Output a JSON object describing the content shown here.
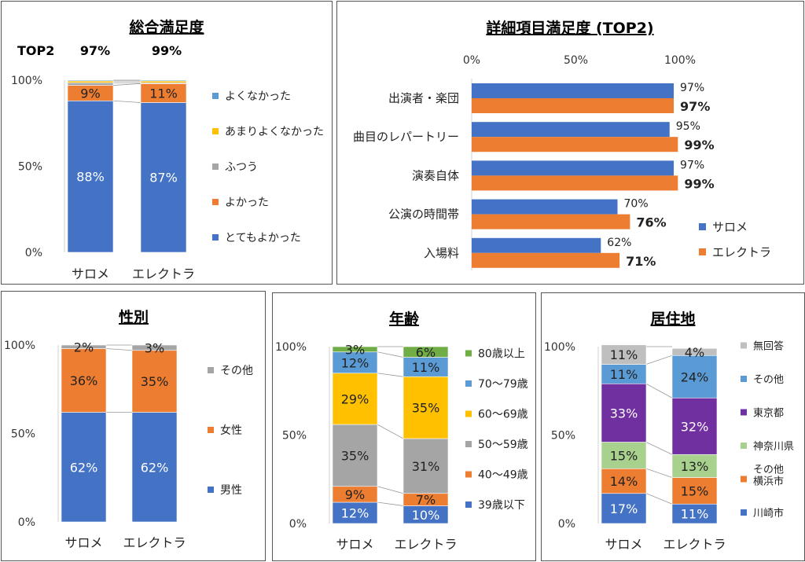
{
  "colors": {
    "blue": "#4472C4",
    "orange": "#ED7D31",
    "gray": "#A5A5A5",
    "yellow": "#FFC000",
    "lightblue": "#5B9BD5",
    "green": "#70AD47",
    "purple": "#7030A0",
    "lightgreen": "#A9D18E",
    "lightgray": "#BFBFBF"
  },
  "chart_data": [
    {
      "id": "overall",
      "type": "bar",
      "stacked": true,
      "title": "総合満足度",
      "top2_label": "TOP2",
      "top2_values": [
        "97%",
        "99%"
      ],
      "categories": [
        "サロメ",
        "エレクトラ"
      ],
      "y_ticks": [
        "0%",
        "50%",
        "100%"
      ],
      "ylim": [
        0,
        100
      ],
      "legend_position": "right",
      "series": [
        {
          "name": "とてもよかった",
          "color": "#4472C4",
          "values": [
            88,
            87
          ],
          "labels": [
            "88%",
            "87%"
          ],
          "label_color": "#ffffff"
        },
        {
          "name": "よかった",
          "color": "#ED7D31",
          "values": [
            9,
            11
          ],
          "labels": [
            "9%",
            "11%"
          ],
          "label_color": "#222222"
        },
        {
          "name": "ふつう",
          "color": "#A5A5A5",
          "values": [
            1.5,
            0.5
          ],
          "labels": [
            "",
            ""
          ]
        },
        {
          "name": "あまりよくなかった",
          "color": "#FFC000",
          "values": [
            1.0,
            1.0
          ],
          "labels": [
            "",
            ""
          ]
        },
        {
          "name": "よくなかった",
          "color": "#5B9BD5",
          "values": [
            0.5,
            0.5
          ],
          "labels": [
            "",
            ""
          ]
        }
      ]
    },
    {
      "id": "detail",
      "type": "bar",
      "orientation": "horizontal",
      "title": "詳細項目満足度 (TOP2)",
      "x_ticks": [
        "0%",
        "50%",
        "100%"
      ],
      "xlim": [
        0,
        100
      ],
      "categories": [
        "出演者・楽団",
        "曲目のレパートリー",
        "演奏自体",
        "公演の時間帯",
        "入場料"
      ],
      "legend_position": "bottom-right",
      "series": [
        {
          "name": "サロメ",
          "color": "#4472C4",
          "values": [
            97,
            95,
            97,
            70,
            62
          ],
          "labels": [
            "97%",
            "95%",
            "97%",
            "70%",
            "62%"
          ]
        },
        {
          "name": "エレクトラ",
          "color": "#ED7D31",
          "values": [
            97,
            99,
            99,
            76,
            71
          ],
          "labels": [
            "97%",
            "99%",
            "99%",
            "76%",
            "71%"
          ]
        }
      ]
    },
    {
      "id": "gender",
      "type": "bar",
      "stacked": true,
      "title": "性別",
      "categories": [
        "サロメ",
        "エレクトラ"
      ],
      "y_ticks": [
        "0%",
        "50%",
        "100%"
      ],
      "ylim": [
        0,
        100
      ],
      "legend_position": "right",
      "series": [
        {
          "name": "男性",
          "color": "#4472C4",
          "values": [
            62,
            62
          ],
          "labels": [
            "62%",
            "62%"
          ],
          "label_color": "#ffffff"
        },
        {
          "name": "女性",
          "color": "#ED7D31",
          "values": [
            36,
            35
          ],
          "labels": [
            "36%",
            "35%"
          ],
          "label_color": "#222222"
        },
        {
          "name": "その他",
          "color": "#A5A5A5",
          "values": [
            2,
            3
          ],
          "labels": [
            "2%",
            "3%"
          ],
          "label_color": "#222222"
        }
      ]
    },
    {
      "id": "age",
      "type": "bar",
      "stacked": true,
      "title": "年齢",
      "categories": [
        "サロメ",
        "エレクトラ"
      ],
      "y_ticks": [
        "0%",
        "50%",
        "100%"
      ],
      "ylim": [
        0,
        100
      ],
      "legend_position": "right",
      "series": [
        {
          "name": "39歳以下",
          "color": "#4472C4",
          "values": [
            12,
            10
          ],
          "labels": [
            "12%",
            "10%"
          ],
          "label_color": "#ffffff"
        },
        {
          "name": "40～49歳",
          "color": "#ED7D31",
          "values": [
            9,
            7
          ],
          "labels": [
            "9%",
            "7%"
          ],
          "label_color": "#222222"
        },
        {
          "name": "50～59歳",
          "color": "#A5A5A5",
          "values": [
            35,
            31
          ],
          "labels": [
            "35%",
            "31%"
          ],
          "label_color": "#222222"
        },
        {
          "name": "60～69歳",
          "color": "#FFC000",
          "values": [
            29,
            35
          ],
          "labels": [
            "29%",
            "35%"
          ],
          "label_color": "#222222"
        },
        {
          "name": "70～79歳",
          "color": "#5B9BD5",
          "values": [
            12,
            11
          ],
          "labels": [
            "12%",
            "11%"
          ],
          "label_color": "#222222"
        },
        {
          "name": "80歳以上",
          "color": "#70AD47",
          "values": [
            3,
            6
          ],
          "labels": [
            "3%",
            "6%"
          ],
          "label_color": "#222222"
        }
      ]
    },
    {
      "id": "residence",
      "type": "bar",
      "stacked": true,
      "title": "居住地",
      "categories": [
        "サロメ",
        "エレクトラ"
      ],
      "y_ticks": [
        "0%",
        "50%",
        "100%"
      ],
      "ylim": [
        0,
        100
      ],
      "legend_position": "right",
      "series": [
        {
          "name": "川崎市",
          "color": "#4472C4",
          "values": [
            17,
            11
          ],
          "labels": [
            "17%",
            "11%"
          ],
          "label_color": "#ffffff"
        },
        {
          "name": "その他横浜市",
          "legend_lines": [
            "その他",
            "横浜市"
          ],
          "color": "#ED7D31",
          "values": [
            14,
            15
          ],
          "labels": [
            "14%",
            "15%"
          ],
          "label_color": "#222222"
        },
        {
          "name": "神奈川県",
          "color": "#A9D18E",
          "values": [
            15,
            13
          ],
          "labels": [
            "15%",
            "13%"
          ],
          "label_color": "#222222"
        },
        {
          "name": "東京都",
          "color": "#7030A0",
          "values": [
            33,
            32
          ],
          "labels": [
            "33%",
            "32%"
          ],
          "label_color": "#ffffff"
        },
        {
          "name": "その他",
          "color": "#5B9BD5",
          "values": [
            11,
            24
          ],
          "labels": [
            "11%",
            "24%"
          ],
          "label_color": "#222222"
        },
        {
          "name": "無回答",
          "color": "#BFBFBF",
          "values": [
            11,
            4
          ],
          "labels": [
            "11%",
            "4%"
          ],
          "label_color": "#222222"
        }
      ]
    }
  ]
}
